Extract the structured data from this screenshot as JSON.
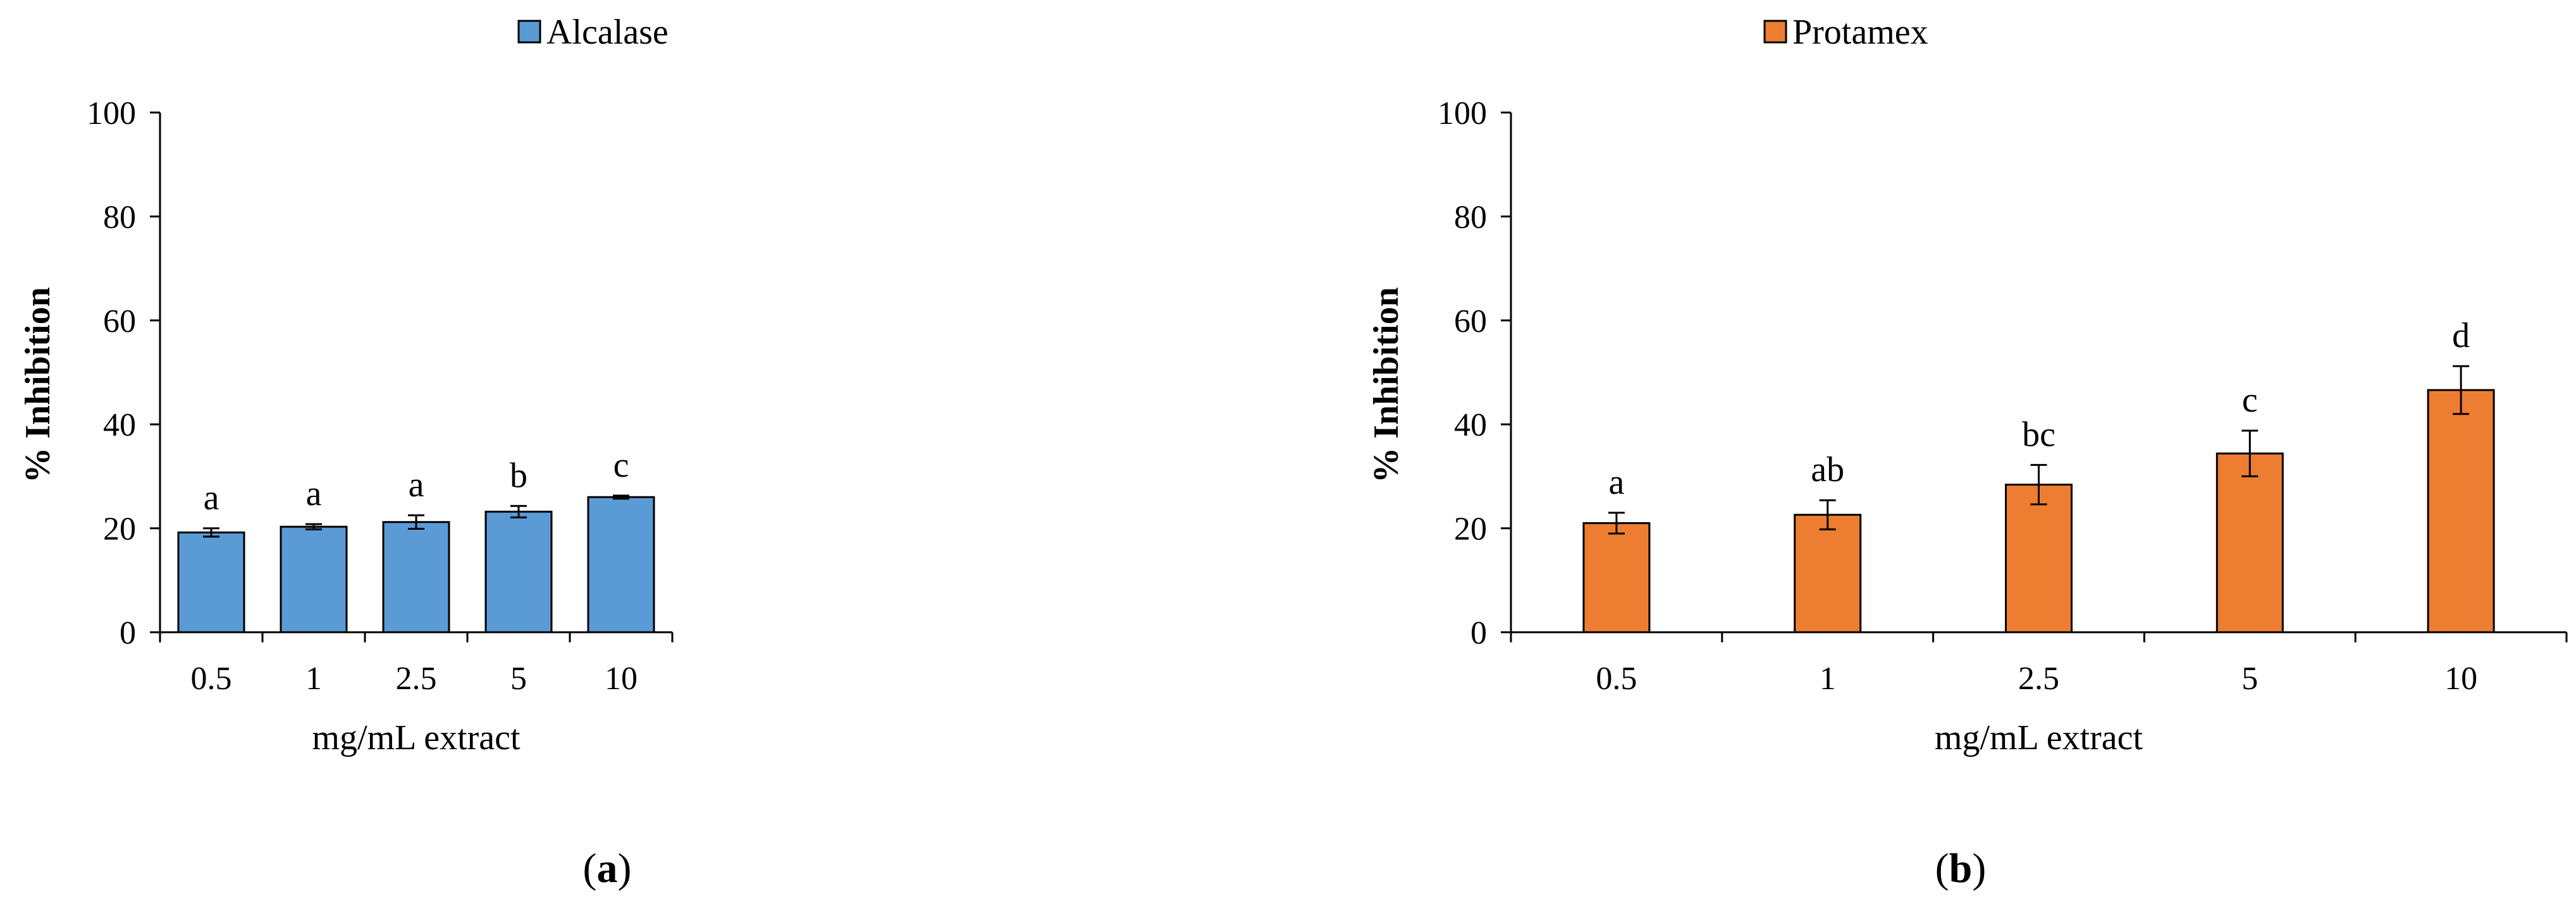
{
  "chart_data": [
    {
      "type": "bar",
      "panel_label": {
        "open": "(",
        "letter": "a",
        "close": ")"
      },
      "categories": [
        "0.5",
        "1",
        "2.5",
        "5",
        "10"
      ],
      "series": [
        {
          "name": "Alcalase",
          "values": [
            19.2,
            20.3,
            21.2,
            23.2,
            26.0
          ],
          "errors": [
            0.8,
            0.5,
            1.3,
            1.1,
            0.3
          ]
        }
      ],
      "significance": [
        "a",
        "a",
        "a",
        "b",
        "c"
      ],
      "xlabel": "mg/mL extract",
      "ylabel": "% Inhibition",
      "ylim": [
        0,
        100
      ],
      "yticks": [
        "0",
        "20",
        "40",
        "60",
        "80",
        "100"
      ],
      "color": "#5b9bd5",
      "grid": false,
      "legend_position": "top-center"
    },
    {
      "type": "bar",
      "panel_label": {
        "open": "(",
        "letter": "b",
        "close": ")"
      },
      "categories": [
        "0.5",
        "1",
        "2.5",
        "5",
        "10"
      ],
      "series": [
        {
          "name": "Protamex",
          "values": [
            21.0,
            22.6,
            28.4,
            34.4,
            46.6
          ],
          "errors": [
            2.0,
            2.8,
            3.8,
            4.4,
            4.6
          ]
        }
      ],
      "significance": [
        "a",
        "ab",
        "bc",
        "c",
        "d"
      ],
      "xlabel": "mg/mL extract",
      "ylabel": "% Inhibition",
      "ylim": [
        0,
        100
      ],
      "yticks": [
        "0",
        "20",
        "40",
        "60",
        "80",
        "100"
      ],
      "color": "#ed7d31",
      "grid": false,
      "legend_position": "top-center"
    }
  ]
}
